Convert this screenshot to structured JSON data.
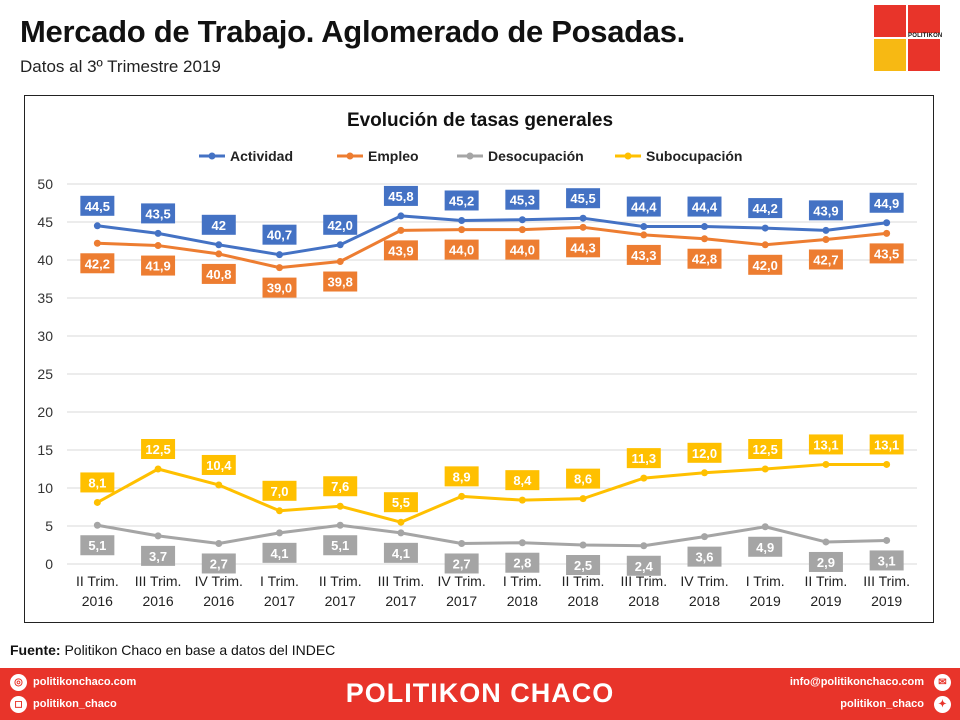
{
  "header": {
    "title": "Mercado de Trabajo. Aglomerado de Posadas.",
    "subtitle": "Datos al 3º Trimestre 2019",
    "logo_text": "POLITIKON"
  },
  "chart_data": {
    "type": "line",
    "title": "Evolución de tasas generales",
    "xlabel": "",
    "ylabel": "",
    "ylim": [
      0,
      50
    ],
    "yticks": [
      0,
      5,
      10,
      15,
      20,
      25,
      30,
      35,
      40,
      45,
      50
    ],
    "grid": true,
    "legend_position": "top",
    "categories": [
      [
        "II Trim.",
        "2016"
      ],
      [
        "III Trim.",
        "2016"
      ],
      [
        "IV Trim.",
        "2016"
      ],
      [
        "I Trim.",
        "2017"
      ],
      [
        "II Trim.",
        "2017"
      ],
      [
        "III Trim.",
        "2017"
      ],
      [
        "IV Trim.",
        "2017"
      ],
      [
        "I Trim.",
        "2018"
      ],
      [
        "II Trim.",
        "2018"
      ],
      [
        "III Trim.",
        "2018"
      ],
      [
        "IV Trim.",
        "2018"
      ],
      [
        "I Trim.",
        "2019"
      ],
      [
        "II Trim.",
        "2019"
      ],
      [
        "III Trim.",
        "2019"
      ]
    ],
    "series": [
      {
        "name": "Actividad",
        "color": "#4472c4",
        "label_side": "above",
        "values": [
          44.5,
          43.5,
          42,
          40.7,
          42.0,
          45.8,
          45.2,
          45.3,
          45.5,
          44.4,
          44.4,
          44.2,
          43.9,
          44.9
        ],
        "labels": [
          "44,5",
          "43,5",
          "42",
          "40,7",
          "42,0",
          "45,8",
          "45,2",
          "45,3",
          "45,5",
          "44,4",
          "44,4",
          "44,2",
          "43,9",
          "44,9"
        ]
      },
      {
        "name": "Empleo",
        "color": "#ed7d31",
        "label_side": "below",
        "values": [
          42.2,
          41.9,
          40.8,
          39.0,
          39.8,
          43.9,
          44.0,
          44.0,
          44.3,
          43.3,
          42.8,
          42.0,
          42.7,
          43.5
        ],
        "labels": [
          "42,2",
          "41,9",
          "40,8",
          "39,0",
          "39,8",
          "43,9",
          "44,0",
          "44,0",
          "44,3",
          "43,3",
          "42,8",
          "42,0",
          "42,7",
          "43,5"
        ]
      },
      {
        "name": "Desocupación",
        "color": "#a5a5a5",
        "label_side": "below",
        "values": [
          5.1,
          3.7,
          2.7,
          4.1,
          5.1,
          4.1,
          2.7,
          2.8,
          2.5,
          2.4,
          3.6,
          4.9,
          2.9,
          3.1
        ],
        "labels": [
          "5,1",
          "3,7",
          "2,7",
          "4,1",
          "5,1",
          "4,1",
          "2,7",
          "2,8",
          "2,5",
          "2,4",
          "3,6",
          "4,9",
          "2,9",
          "3,1"
        ]
      },
      {
        "name": "Subocupación",
        "color": "#ffc000",
        "label_side": "above",
        "values": [
          8.1,
          12.5,
          10.4,
          7.0,
          7.6,
          5.5,
          8.9,
          8.4,
          8.6,
          11.3,
          12.0,
          12.5,
          13.1,
          13.1
        ],
        "labels": [
          "8,1",
          "12,5",
          "10,4",
          "7,0",
          "7,6",
          "5,5",
          "8,9",
          "8,4",
          "8,6",
          "11,3",
          "12,0",
          "12,5",
          "13,1",
          "13,1"
        ]
      }
    ]
  },
  "source": {
    "label": "Fuente:",
    "text": " Politikon Chaco en base a datos del INDEC"
  },
  "footer": {
    "brand": "POLITIKON CHACO",
    "website": "politikonchaco.com",
    "instagram": "politikon_chaco",
    "email": "info@politikonchaco.com",
    "twitter": "politikon_chaco"
  }
}
